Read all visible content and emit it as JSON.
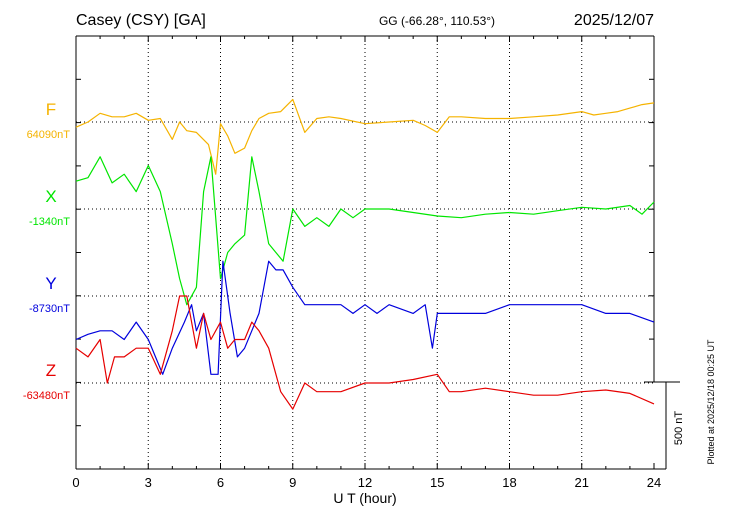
{
  "header": {
    "station": "Casey (CSY)  [GA]",
    "coords": "GG (-66.28°, 110.53°)",
    "date": "2025/12/07"
  },
  "footer": {
    "plotted": "Plotted at 2025/12/18 00:25 UT"
  },
  "colors": {
    "F": "#f5b300",
    "X": "#00e600",
    "Y": "#0000dd",
    "Z": "#e60000"
  },
  "chart_data": {
    "type": "line",
    "xlabel": "U T (hour)",
    "xlim": [
      0,
      24
    ],
    "xticks": [
      "0",
      "3",
      "6",
      "9",
      "12",
      "15",
      "18",
      "21",
      "24"
    ],
    "scale_bar": "500 nT",
    "grid": true,
    "series": [
      {
        "name": "F",
        "baseline_label": "64090nT",
        "x": [
          0,
          0.5,
          1,
          1.5,
          2,
          2.5,
          3,
          3.5,
          4,
          4.3,
          4.6,
          5,
          5.5,
          5.8,
          6,
          6.3,
          6.6,
          7,
          7.3,
          7.6,
          8,
          8.5,
          9,
          9.5,
          10,
          10.5,
          11,
          12,
          13,
          14,
          14.5,
          15,
          15.5,
          16,
          17,
          18,
          19,
          20,
          21,
          21.5,
          22,
          22.5,
          23,
          23.5,
          24
        ],
        "values": [
          -30,
          0,
          50,
          30,
          30,
          50,
          10,
          20,
          -100,
          0,
          -50,
          -60,
          -130,
          -300,
          -10,
          -80,
          -180,
          -150,
          -50,
          20,
          50,
          60,
          130,
          -60,
          20,
          30,
          20,
          -10,
          0,
          10,
          -20,
          -60,
          30,
          30,
          20,
          20,
          30,
          40,
          60,
          40,
          50,
          60,
          80,
          100,
          110
        ]
      },
      {
        "name": "X",
        "baseline_label": "-1340nT",
        "x": [
          0,
          0.5,
          1,
          1.5,
          2,
          2.5,
          3,
          3.5,
          4,
          4.3,
          4.6,
          5,
          5.3,
          5.6,
          6,
          6.3,
          6.6,
          7,
          7.3,
          7.6,
          8,
          8.3,
          8.6,
          9,
          9.5,
          10,
          10.5,
          11,
          11.5,
          12,
          13,
          14,
          15,
          16,
          17,
          18,
          19,
          20,
          21,
          22,
          23,
          23.5,
          24
        ],
        "values": [
          160,
          180,
          300,
          150,
          200,
          100,
          250,
          100,
          -200,
          -400,
          -550,
          -450,
          100,
          300,
          -400,
          -250,
          -200,
          -150,
          300,
          100,
          -200,
          -250,
          -300,
          0,
          -100,
          -50,
          -100,
          0,
          -50,
          0,
          0,
          -20,
          -40,
          -50,
          -30,
          -20,
          -30,
          -10,
          10,
          0,
          20,
          -30,
          40
        ]
      },
      {
        "name": "Y",
        "baseline_label": "-8730nT",
        "x": [
          0,
          0.5,
          1,
          1.5,
          2,
          2.5,
          3,
          3.3,
          3.6,
          4,
          4.5,
          4.8,
          5,
          5.3,
          5.6,
          5.9,
          6.1,
          6.4,
          6.7,
          7,
          7.3,
          7.6,
          8,
          8.3,
          8.6,
          9,
          9.5,
          10,
          10.5,
          11,
          11.5,
          12,
          12.5,
          13,
          14,
          14.5,
          14.8,
          15,
          15.5,
          16,
          17,
          18,
          19,
          20,
          21,
          22,
          23,
          24
        ],
        "values": [
          -250,
          -220,
          -200,
          -200,
          -250,
          -150,
          -250,
          -350,
          -450,
          -300,
          -150,
          -50,
          -200,
          -100,
          -450,
          -450,
          200,
          -100,
          -350,
          -300,
          -200,
          -100,
          200,
          150,
          150,
          50,
          -50,
          -50,
          -50,
          -50,
          -100,
          -50,
          -100,
          -50,
          -100,
          -50,
          -300,
          -100,
          -100,
          -100,
          -100,
          -50,
          -50,
          -50,
          -50,
          -100,
          -100,
          -150
        ]
      },
      {
        "name": "Z",
        "baseline_label": "-63480nT",
        "x": [
          0,
          0.5,
          1,
          1.3,
          1.6,
          2,
          2.5,
          3,
          3.5,
          4,
          4.3,
          4.6,
          5,
          5.3,
          5.6,
          6,
          6.3,
          6.6,
          7,
          7.3,
          7.6,
          8,
          8.5,
          9,
          9.5,
          10,
          11,
          12,
          13,
          14,
          15,
          15.5,
          16,
          17,
          18,
          19,
          20,
          21,
          22,
          23,
          24
        ],
        "values": [
          200,
          150,
          250,
          0,
          150,
          150,
          200,
          200,
          50,
          300,
          500,
          500,
          200,
          400,
          250,
          350,
          200,
          250,
          250,
          350,
          300,
          200,
          -50,
          -150,
          0,
          -50,
          -50,
          0,
          0,
          20,
          50,
          -50,
          -50,
          -30,
          -50,
          -70,
          -70,
          -50,
          -40,
          -60,
          -120
        ]
      }
    ]
  }
}
